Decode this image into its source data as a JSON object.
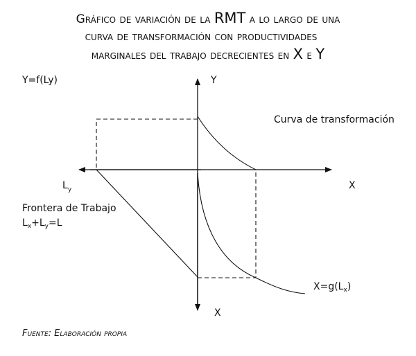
{
  "title": {
    "line1_a": "Gráfico de variación de la ",
    "line1_b": "RMT",
    "line1_c": " a lo largo de una",
    "line2": "curva de transformación con productividades",
    "line3_a": "marginales  del trabajo decrecientes en ",
    "line3_b": "X",
    "line3_c": " e ",
    "line3_d": "Y"
  },
  "labels": {
    "y_function": "Y=f(Ly)",
    "y_axis": "Y",
    "curve": "Curva de transformación",
    "ly_base": "L",
    "ly_sub": "y",
    "x_axis_right": "X",
    "frontier": "Frontera de Trabajo",
    "frontier_eq_l": "L",
    "frontier_eq_x": "x",
    "frontier_eq_plus": "+L",
    "frontier_eq_y": "y",
    "frontier_eq_end": "=L",
    "xg_a": "X=g(L",
    "xg_sub": "x",
    "xg_end": ")",
    "x_axis_bottom": "X"
  },
  "source": "Fuente: Elaboración propia"
}
